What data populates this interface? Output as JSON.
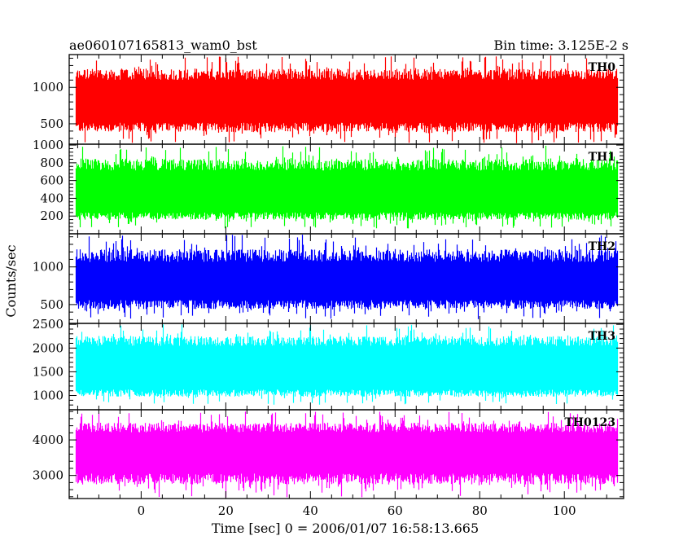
{
  "chart_data": {
    "type": "line",
    "title": "ae060107165813_wam0_bst",
    "subtitle": "Bin time: 3.125E-2 s",
    "xlabel": "Time [sec] 0 = 2006/01/07 16:58:13.665",
    "ylabel": "Counts/sec",
    "xlim": [
      -17,
      114
    ],
    "x_range": [
      -15.5,
      112.5
    ],
    "bin_time": 0.03125,
    "xticks": [
      0,
      20,
      40,
      60,
      80,
      100
    ],
    "grid": false,
    "series": [
      {
        "name": "TH0",
        "color": "#ff0000",
        "ylim": [
          220,
          1450
        ],
        "yticks": [
          500,
          1000
        ],
        "mean": 800,
        "typ_low": 450,
        "typ_high": 1180,
        "min": 230,
        "max": 1440
      },
      {
        "name": "TH1",
        "color": "#00ff00",
        "ylim": [
          0,
          1010
        ],
        "yticks": [
          200,
          400,
          600,
          800,
          1000
        ],
        "mean": 470,
        "typ_low": 200,
        "typ_high": 780,
        "min": 60,
        "max": 1000
      },
      {
        "name": "TH2",
        "color": "#0000ff",
        "ylim": [
          250,
          1440
        ],
        "yticks": [
          500,
          1000
        ],
        "mean": 800,
        "typ_low": 500,
        "typ_high": 1150,
        "min": 300,
        "max": 1430
      },
      {
        "name": "TH3",
        "color": "#00ffff",
        "ylim": [
          700,
          2520
        ],
        "yticks": [
          1000,
          1500,
          2000,
          2500
        ],
        "mean": 1580,
        "typ_low": 1050,
        "typ_high": 2150,
        "min": 800,
        "max": 2500
      },
      {
        "name": "TH0123",
        "color": "#ff00ff",
        "ylim": [
          2350,
          4850
        ],
        "yticks": [
          3000,
          4000
        ],
        "mean": 3600,
        "typ_low": 2900,
        "typ_high": 4350,
        "min": 2380,
        "max": 4800
      }
    ]
  }
}
